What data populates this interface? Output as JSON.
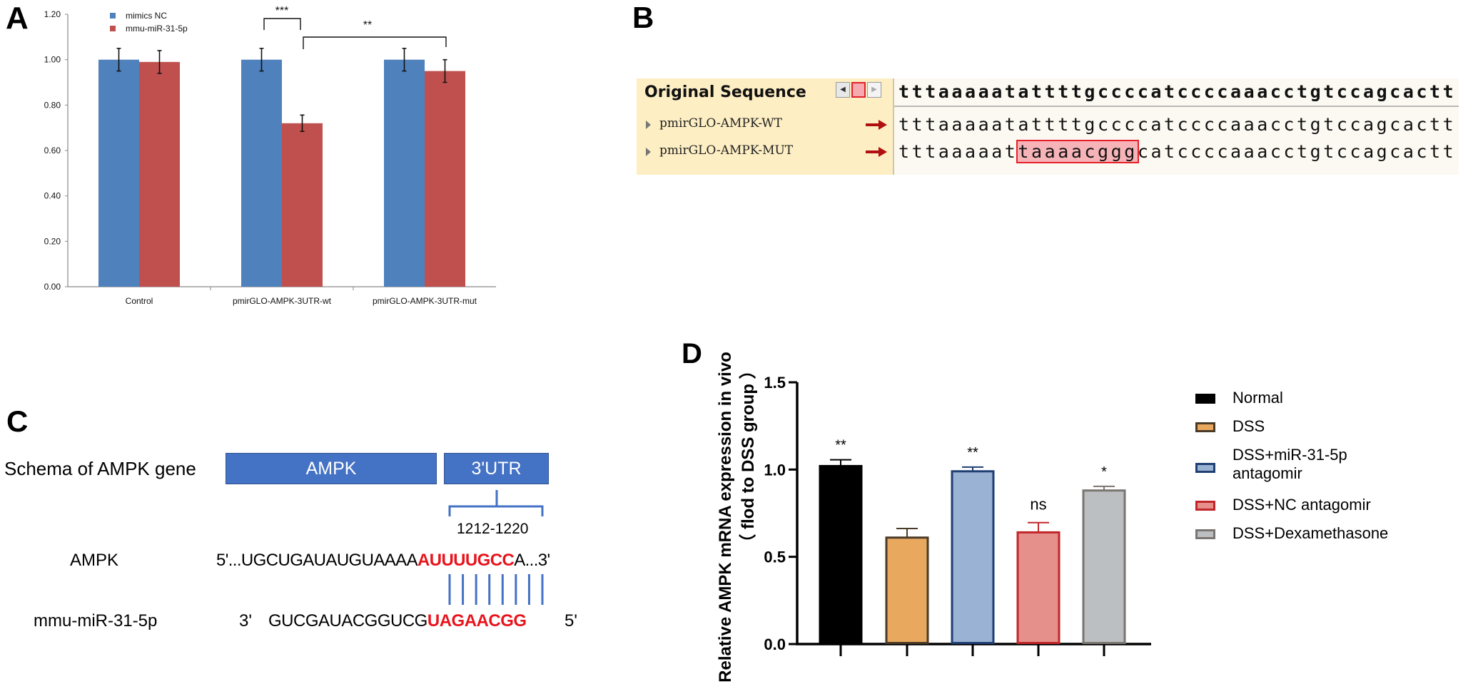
{
  "panels": {
    "A": {
      "letter": "A"
    },
    "B": {
      "letter": "B"
    },
    "C": {
      "letter": "C"
    },
    "D": {
      "letter": "D"
    }
  },
  "chart_data": [
    {
      "id": "A",
      "type": "bar",
      "title": "",
      "xlabel": "",
      "ylabel": "",
      "categories": [
        "Control",
        "pmirGLO-AMPK-3UTR-wt",
        "pmirGLO-AMPK-3UTR-mut"
      ],
      "series": [
        {
          "name": "mimics NC",
          "color": "#4f81bd",
          "values": [
            1.0,
            1.0,
            1.0
          ],
          "errors": [
            0.05,
            0.05,
            0.05
          ]
        },
        {
          "name": "mmu-miR-31-5p",
          "color": "#c0504d",
          "values": [
            0.99,
            0.72,
            0.95
          ],
          "errors": [
            0.05,
            0.036,
            0.05
          ]
        }
      ],
      "ylim": [
        0,
        1.2
      ],
      "yticks": [
        "0.00",
        "0.20",
        "0.40",
        "0.60",
        "0.80",
        "1.00",
        "1.20"
      ],
      "grid": false,
      "legend_position": "top-left",
      "annotations": [
        {
          "label": "***",
          "from": "pmirGLO-AMPK-3UTR-wt/mimics NC",
          "to": "pmirGLO-AMPK-3UTR-wt/mmu-miR-31-5p"
        },
        {
          "label": "**",
          "from": "pmirGLO-AMPK-3UTR-wt/mmu-miR-31-5p",
          "to": "pmirGLO-AMPK-3UTR-mut/mmu-miR-31-5p"
        }
      ]
    },
    {
      "id": "D",
      "type": "bar",
      "title": "",
      "xlabel": "",
      "ylabel": "Relative AMPK mRNA expression in vivo",
      "ylabel2": "（ flod to DSS group ）",
      "categories": [
        "Normal",
        "DSS",
        "DSS+miR-31-5p antagomir",
        "DSS+NC antagomir",
        "DSS+Dexamethasone"
      ],
      "legend_labels": [
        [
          "Normal"
        ],
        [
          "DSS"
        ],
        [
          "DSS+miR-31-5p",
          "antagomir"
        ],
        [
          "DSS+NC antagomir"
        ],
        [
          "DSS+Dexamethasone"
        ]
      ],
      "values": [
        1.02,
        0.61,
        0.99,
        0.64,
        0.88
      ],
      "errors": [
        0.036,
        0.052,
        0.024,
        0.056,
        0.024
      ],
      "significance": [
        "**",
        "",
        "**",
        "ns",
        "*"
      ],
      "fill_colors": [
        "#000000",
        "#e8a85e",
        "#9ab2d3",
        "#e5908a",
        "#bcbfc2"
      ],
      "edge_colors": [
        "#000000",
        "#4a3a28",
        "#1f3f73",
        "#c0262a",
        "#7a7570"
      ],
      "ylim": [
        0,
        1.5
      ],
      "yticks": [
        "0.0",
        "0.5",
        "1.0",
        "1.5"
      ],
      "grid": false,
      "legend_position": "right"
    }
  ],
  "sequence_viewer": {
    "header_label": "Original Sequence",
    "original": "tttaaaaatattttgccccatccccaaacctgtccagcactt",
    "rows": [
      {
        "label": "pmirGLO-AMPK-WT",
        "seq_before": "tttaaaaatattttgccccatccccaaacctgtccagcactt",
        "seq_highlight": "",
        "seq_after": ""
      },
      {
        "label": "pmirGLO-AMPK-MUT",
        "seq_before": "tttaaaaat",
        "seq_highlight": "taaaacggg",
        "seq_after": "catccccaaacctgtccagcactt"
      }
    ],
    "nav_prev": "◀",
    "nav_next": "▶"
  },
  "schema": {
    "title": "Schema of AMPK gene",
    "gene_box": "AMPK",
    "utr_box": "3'UTR",
    "site_range": "1212-1220",
    "target_label": "AMPK",
    "target_prefix": "5'...UGCUGAUAUGUAAAA",
    "target_seed": "AUUUUGCC",
    "target_suffix": "A...3'",
    "mirna_label": "mmu-miR-31-5p",
    "mirna_end3": "3'",
    "mirna_prefix": "GUCGAUACGGUCG",
    "mirna_seed": "UAGAACGG",
    "mirna_end5": "5'",
    "pair_count": 8,
    "accent_color": "#4472c4",
    "seed_color": "#e8141c"
  }
}
